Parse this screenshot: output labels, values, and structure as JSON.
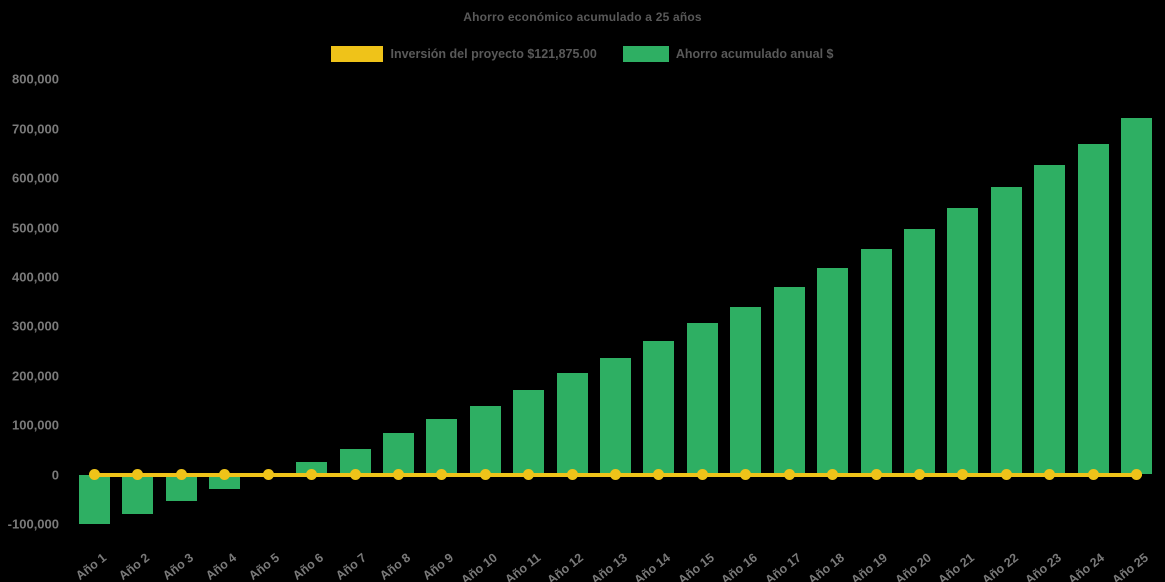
{
  "title": "Ahorro económico acumulado a 25 años",
  "colors": {
    "background": "#000000",
    "bar": "#2EAF63",
    "line": "#EFC319",
    "title_text": "#595959",
    "axis_text": "#7a7a7a"
  },
  "legend": {
    "items": [
      {
        "label": "Inversión del proyecto $121,875.00",
        "color": "#EFC319",
        "kind": "line"
      },
      {
        "label": "Ahorro acumulado anual $",
        "color": "#2EAF63",
        "kind": "bar"
      }
    ]
  },
  "chart_data": {
    "type": "bar",
    "title": "Ahorro económico acumulado a 25 años",
    "categories": [
      "Año 1",
      "Año 2",
      "Año 3",
      "Año 4",
      "Año 5",
      "Año 6",
      "Año 7",
      "Año 8",
      "Año 9",
      "Año 10",
      "Año 11",
      "Año 12",
      "Año 13",
      "Año 14",
      "Año 15",
      "Año 16",
      "Año 17",
      "Año 18",
      "Año 19",
      "Año 20",
      "Año 21",
      "Año 22",
      "Año 23",
      "Año 24",
      "Año 25"
    ],
    "series": [
      {
        "name": "Ahorro acumulado anual $",
        "type": "bar",
        "color": "#2EAF63",
        "values": [
          -100000,
          -79000,
          -54000,
          -30000,
          -3000,
          25000,
          52000,
          83000,
          112000,
          139000,
          171000,
          205000,
          236000,
          270000,
          307000,
          339000,
          380000,
          418000,
          456000,
          497000,
          539000,
          582000,
          626000,
          669000,
          722000
        ]
      },
      {
        "name": "Inversión del proyecto $121,875.00",
        "type": "line",
        "color": "#EFC319",
        "marker": "circle",
        "values": [
          0,
          0,
          0,
          0,
          0,
          0,
          0,
          0,
          0,
          0,
          0,
          0,
          0,
          0,
          0,
          0,
          0,
          0,
          0,
          0,
          0,
          0,
          0,
          0,
          0
        ]
      }
    ],
    "xlabel": "",
    "ylabel": "",
    "ylim": [
      -100000,
      800000
    ],
    "ytick_step": 100000,
    "yticks": [
      -100000,
      0,
      100000,
      200000,
      300000,
      400000,
      500000,
      600000,
      700000,
      800000
    ],
    "ytick_labels": [
      "-100,000",
      "0",
      "100,000",
      "200,000",
      "300,000",
      "400,000",
      "500,000",
      "600,000",
      "700,000",
      "800,000"
    ],
    "grid": false,
    "legend_position": "top"
  }
}
